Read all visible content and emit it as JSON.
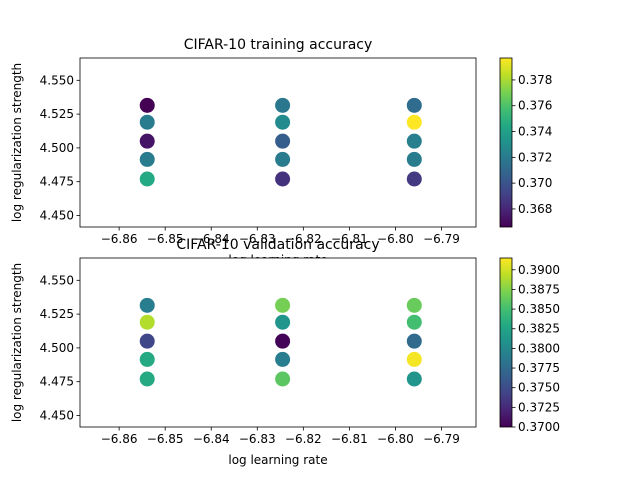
{
  "chart_data": [
    {
      "type": "scatter",
      "title": "CIFAR-10 training accuracy",
      "xlabel": "log learning rate",
      "ylabel": "log regularization strength",
      "xlim": [
        -6.8685,
        -6.7825
      ],
      "ylim": [
        4.4415,
        4.5665
      ],
      "xticks": [
        -6.86,
        -6.85,
        -6.84,
        -6.83,
        -6.82,
        -6.81,
        -6.8,
        -6.79
      ],
      "xtick_labels": [
        "−6.86",
        "−6.85",
        "−6.84",
        "−6.83",
        "−6.82",
        "−6.81",
        "−6.80",
        "−6.79"
      ],
      "yticks": [
        4.45,
        4.475,
        4.5,
        4.525,
        4.55
      ],
      "ytick_labels": [
        "4.450",
        "4.475",
        "4.500",
        "4.525",
        "4.550"
      ],
      "colormap": "viridis",
      "clim": [
        0.3666,
        0.3797
      ],
      "colorbar_ticks": [
        0.368,
        0.37,
        0.372,
        0.374,
        0.376,
        0.378
      ],
      "colorbar_tick_labels": [
        "0.368",
        "0.370",
        "0.372",
        "0.374",
        "0.376",
        "0.378"
      ],
      "points": [
        {
          "x": -6.8539,
          "y": 4.5315,
          "value": 0.3666
        },
        {
          "x": -6.8539,
          "y": 4.519,
          "value": 0.372
        },
        {
          "x": -6.8539,
          "y": 4.505,
          "value": 0.3673
        },
        {
          "x": -6.8539,
          "y": 4.4915,
          "value": 0.372
        },
        {
          "x": -6.8539,
          "y": 4.477,
          "value": 0.3745
        },
        {
          "x": -6.8245,
          "y": 4.5315,
          "value": 0.3718
        },
        {
          "x": -6.8245,
          "y": 4.519,
          "value": 0.3728
        },
        {
          "x": -6.8245,
          "y": 4.505,
          "value": 0.3705
        },
        {
          "x": -6.8245,
          "y": 4.4915,
          "value": 0.372
        },
        {
          "x": -6.8245,
          "y": 4.477,
          "value": 0.3685
        },
        {
          "x": -6.7959,
          "y": 4.5315,
          "value": 0.3712
        },
        {
          "x": -6.7959,
          "y": 4.519,
          "value": 0.3797
        },
        {
          "x": -6.7959,
          "y": 4.505,
          "value": 0.3722
        },
        {
          "x": -6.7959,
          "y": 4.4915,
          "value": 0.372
        },
        {
          "x": -6.7959,
          "y": 4.477,
          "value": 0.3688
        }
      ]
    },
    {
      "type": "scatter",
      "title": "CIFAR-10 validation accuracy",
      "xlabel": "log learning rate",
      "ylabel": "log regularization strength",
      "xlim": [
        -6.8685,
        -6.7825
      ],
      "ylim": [
        4.4415,
        4.5665
      ],
      "xticks": [
        -6.86,
        -6.85,
        -6.84,
        -6.83,
        -6.82,
        -6.81,
        -6.8,
        -6.79
      ],
      "xtick_labels": [
        "−6.86",
        "−6.85",
        "−6.84",
        "−6.83",
        "−6.82",
        "−6.81",
        "−6.80",
        "−6.79"
      ],
      "yticks": [
        4.45,
        4.475,
        4.5,
        4.525,
        4.55
      ],
      "ytick_labels": [
        "4.450",
        "4.475",
        "4.500",
        "4.525",
        "4.550"
      ],
      "colormap": "viridis",
      "clim": [
        0.37,
        0.3915
      ],
      "colorbar_ticks": [
        0.37,
        0.3725,
        0.375,
        0.3775,
        0.38,
        0.3825,
        0.385,
        0.3875,
        0.39
      ],
      "colorbar_tick_labels": [
        "0.3700",
        "0.3725",
        "0.3750",
        "0.3775",
        "0.3800",
        "0.3825",
        "0.3850",
        "0.3875",
        "0.3900"
      ],
      "points": [
        {
          "x": -6.8539,
          "y": 4.5315,
          "value": 0.379
        },
        {
          "x": -6.8539,
          "y": 4.519,
          "value": 0.389
        },
        {
          "x": -6.8539,
          "y": 4.505,
          "value": 0.3745
        },
        {
          "x": -6.8539,
          "y": 4.4915,
          "value": 0.383
        },
        {
          "x": -6.8539,
          "y": 4.477,
          "value": 0.383
        },
        {
          "x": -6.8245,
          "y": 4.5315,
          "value": 0.387
        },
        {
          "x": -6.8245,
          "y": 4.519,
          "value": 0.381
        },
        {
          "x": -6.8245,
          "y": 4.505,
          "value": 0.3702
        },
        {
          "x": -6.8245,
          "y": 4.4915,
          "value": 0.379
        },
        {
          "x": -6.8245,
          "y": 4.477,
          "value": 0.386
        },
        {
          "x": -6.7959,
          "y": 4.5315,
          "value": 0.3865
        },
        {
          "x": -6.7959,
          "y": 4.519,
          "value": 0.385
        },
        {
          "x": -6.7959,
          "y": 4.505,
          "value": 0.3775
        },
        {
          "x": -6.7959,
          "y": 4.4915,
          "value": 0.3912
        },
        {
          "x": -6.7959,
          "y": 4.477,
          "value": 0.381
        }
      ]
    }
  ]
}
